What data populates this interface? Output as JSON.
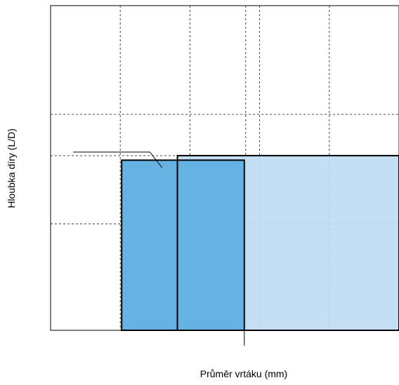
{
  "chart_data": {
    "type": "area",
    "title": "",
    "xlabel": "Průměr vrtáku (mm)",
    "ylabel": "Hloubka díry (L/D)",
    "grid": true,
    "legend": "none",
    "xlim": [
      0,
      10
    ],
    "ylim": [
      0,
      10
    ],
    "x_grid": [
      2,
      4,
      5.6,
      6,
      8
    ],
    "y_grid": [
      3.28,
      5.38,
      6.65
    ],
    "range_boxes": [
      {
        "x0": 2.04,
        "x1": 5.56,
        "y_top": 5.24,
        "color": "#66b3e3"
      },
      {
        "x0": 3.64,
        "x1": 10.0,
        "y_top": 5.38,
        "color": "#bedcf3"
      }
    ],
    "callout": {
      "x0": 0.65,
      "x1": 2.85,
      "y": 5.49,
      "target_x": 3.2,
      "target_y": 5.01
    },
    "marker_x": 5.56
  }
}
